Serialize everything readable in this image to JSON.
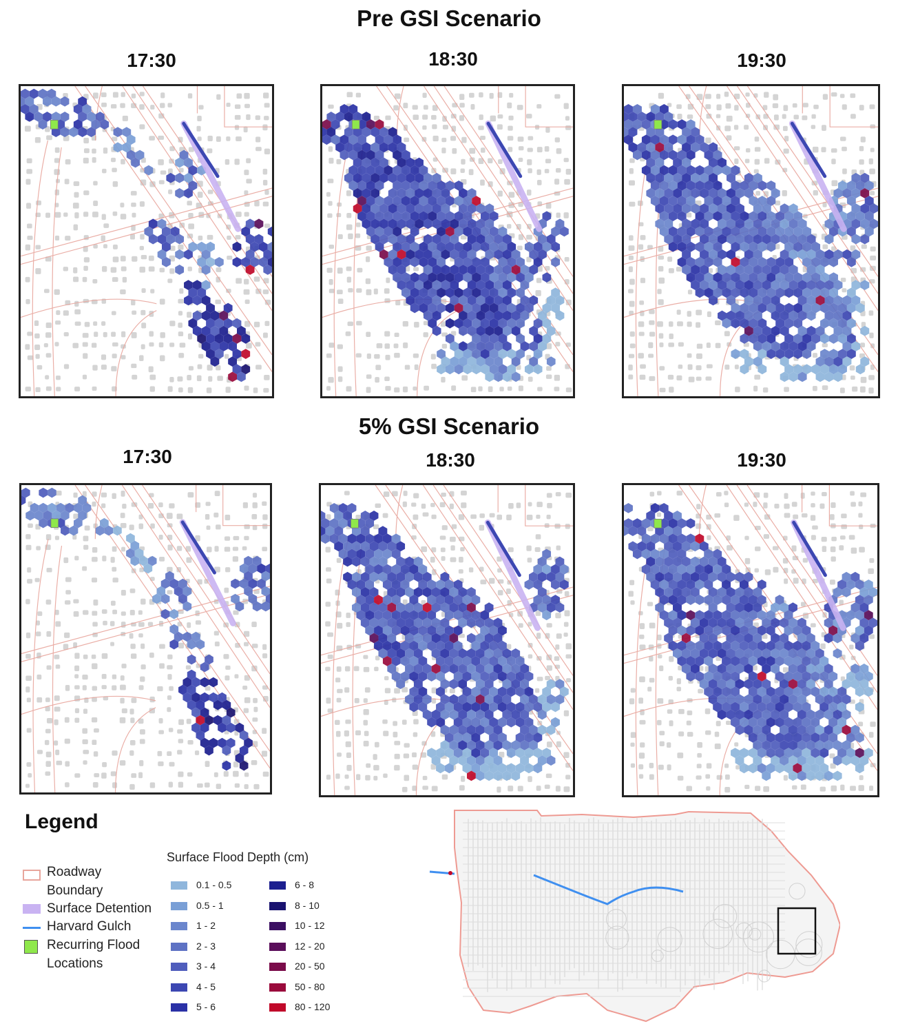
{
  "sections": [
    {
      "title": "Pre GSI Scenario",
      "times": [
        "17:30",
        "18:30",
        "19:30"
      ]
    },
    {
      "title": "5% GSI Scenario",
      "times": [
        "17:30",
        "18:30",
        "19:30"
      ]
    }
  ],
  "legend": {
    "title": "Legend",
    "roadway_label": "Roadway Boundary",
    "detention_label": "Surface Detention",
    "gulch_label": "Harvard Gulch",
    "flood_label": "Recurring Flood Locations",
    "depth_title": "Surface Flood Depth (cm)",
    "depth_bins": [
      {
        "label": "0.1 - 0.5",
        "color": "#8fb6dc"
      },
      {
        "label": "0.5 - 1",
        "color": "#7a9fd6"
      },
      {
        "label": "1 - 2",
        "color": "#6b86cd"
      },
      {
        "label": "2 - 3",
        "color": "#5e72c4"
      },
      {
        "label": "3 - 4",
        "color": "#4f5dbc"
      },
      {
        "label": "4 - 5",
        "color": "#3c47b2"
      },
      {
        "label": "5 - 6",
        "color": "#2a31a6"
      },
      {
        "label": "6 - 8",
        "color": "#1c1f8f"
      },
      {
        "label": "8 - 10",
        "color": "#1a1370"
      },
      {
        "label": "10 - 12",
        "color": "#3b0f62"
      },
      {
        "label": "12 - 20",
        "color": "#5a0e5a"
      },
      {
        "label": "20 - 50",
        "color": "#7a0c4a"
      },
      {
        "label": "50 - 80",
        "color": "#9a0a3c"
      },
      {
        "label": "80 - 120",
        "color": "#c0092a"
      }
    ]
  },
  "colors": {
    "roadway": "#e8a59c",
    "detention": "#c9b3f2",
    "gulch": "#3f8ff0",
    "flood_location": "#8fe84b",
    "buildings": "#d4d4d4"
  }
}
